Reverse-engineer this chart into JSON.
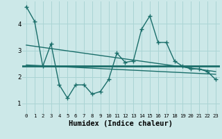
{
  "xlabel": "Humidex (Indice chaleur)",
  "background_color": "#cce8e8",
  "grid_color": "#aad4d4",
  "line_color": "#1a6e6a",
  "x_data": [
    0,
    1,
    2,
    3,
    4,
    5,
    6,
    7,
    8,
    9,
    10,
    11,
    12,
    13,
    14,
    15,
    16,
    17,
    18,
    19,
    20,
    21,
    22,
    23
  ],
  "y_scatter": [
    4.65,
    4.1,
    2.4,
    3.25,
    1.7,
    1.2,
    1.7,
    1.7,
    1.35,
    1.45,
    1.9,
    2.9,
    2.55,
    2.6,
    3.8,
    4.3,
    3.3,
    3.3,
    2.6,
    2.4,
    2.3,
    2.3,
    2.2,
    1.9
  ],
  "ylim": [
    0.6,
    4.85
  ],
  "xlim": [
    -0.5,
    23.5
  ],
  "yticks": [
    1,
    2,
    3,
    4
  ],
  "xticks": [
    0,
    1,
    2,
    3,
    4,
    5,
    6,
    7,
    8,
    9,
    10,
    11,
    12,
    13,
    14,
    15,
    16,
    17,
    18,
    19,
    20,
    21,
    22,
    23
  ],
  "flat_line_y": 2.4,
  "trend_line": [
    3.2,
    2.2
  ],
  "regr_line": [
    2.45,
    2.1
  ]
}
